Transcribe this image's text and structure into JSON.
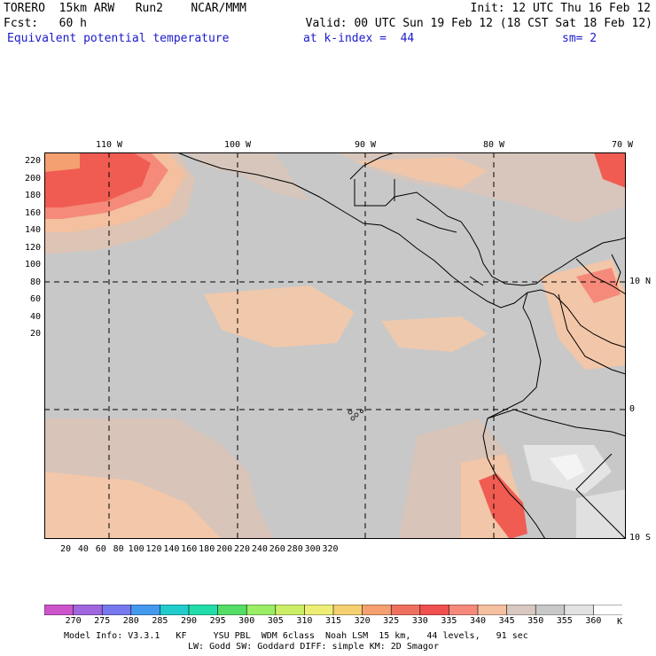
{
  "header": {
    "line1_left": "TORERO  15km ARW   Run2    NCAR/MMM",
    "line1_right": "Init: 12 UTC Thu 16 Feb 12",
    "line2_left": "Fcst:   60 h",
    "line2_right": "Valid: 00 UTC Sun 19 Feb 12 (18 CST Sat 18 Feb 12)",
    "field_name": "Equivalent potential temperature",
    "level": "at k-index =  44",
    "smoothing": "sm= 2"
  },
  "map": {
    "top_lon_labels": [
      "110 W",
      "100 W",
      "90 W",
      "80 W",
      "70 W"
    ],
    "right_lat_labels": [
      "10 N",
      "0",
      "10 S"
    ],
    "left_y_ticks": [
      "220",
      "200",
      "180",
      "160",
      "140",
      "120",
      "100",
      "80",
      "60",
      "40",
      "20"
    ],
    "bottom_x_ticks": [
      "20",
      "40",
      "60",
      "80",
      "100",
      "120",
      "140",
      "160",
      "180",
      "200",
      "220",
      "240",
      "260",
      "280",
      "300",
      "320"
    ],
    "base_color": "#c8c8c8"
  },
  "colorbar": {
    "labels": [
      "270",
      "275",
      "280",
      "285",
      "290",
      "295",
      "300",
      "305",
      "310",
      "315",
      "320",
      "325",
      "330",
      "335",
      "340",
      "345",
      "350",
      "355",
      "360"
    ],
    "unit": "K",
    "colors": [
      "#cc55cc",
      "#a066dd",
      "#7777ee",
      "#4499ee",
      "#22cccc",
      "#22ddaa",
      "#55dd66",
      "#99ee66",
      "#ccee66",
      "#eeee77",
      "#f5d070",
      "#f5a070",
      "#f07060",
      "#f05050",
      "#f58a7a",
      "#f5c0a0",
      "#d8c8c0",
      "#c8c8c8",
      "#e2e2e2",
      "#ffffff"
    ]
  },
  "footer": {
    "line1": "Model Info: V3.3.1   KF     YSU PBL  WDM 6class  Noah LSM  15 km,   44 levels,   91 sec",
    "line2": "LW: Godd SW: Goddard DIFF: simple KM: 2D Smagor"
  }
}
